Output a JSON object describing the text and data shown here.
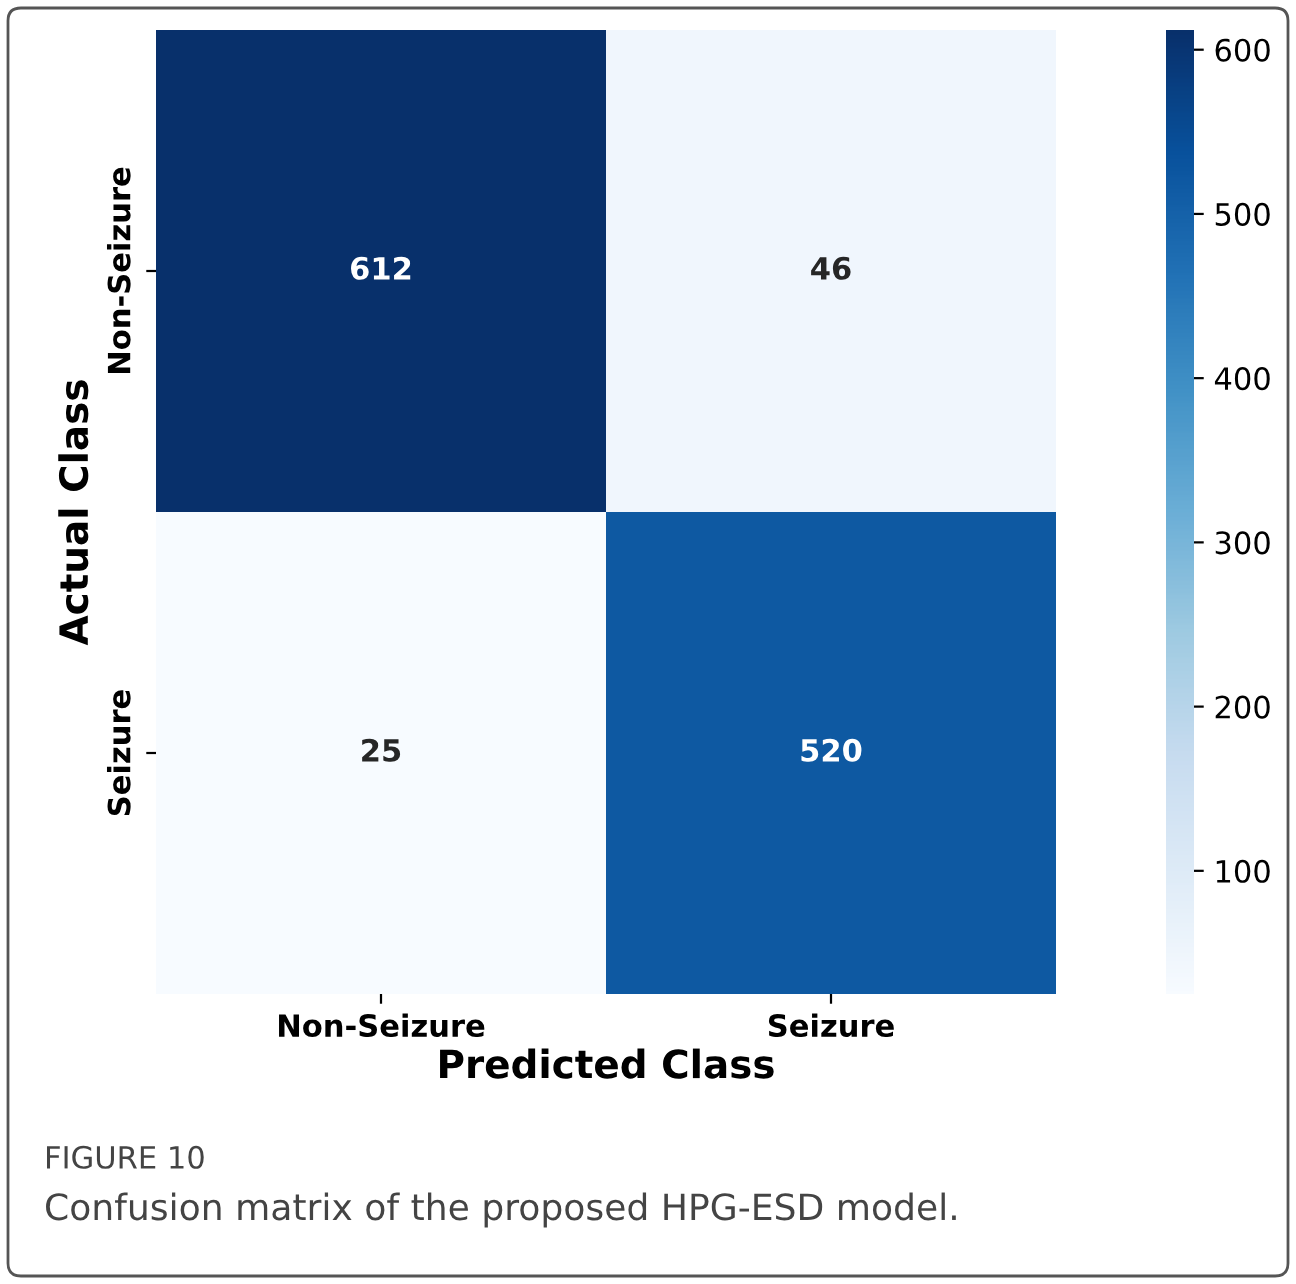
{
  "chart_data": {
    "type": "heatmap",
    "xlabel": "Predicted Class",
    "ylabel": "Actual Class",
    "categories": [
      "Non-Seizure",
      "Seizure"
    ],
    "y_categories": [
      "Non-Seizure",
      "Seizure"
    ],
    "cells": [
      [
        612,
        46
      ],
      [
        25,
        520
      ]
    ],
    "clim": [
      25,
      612
    ],
    "cticks": [
      100,
      200,
      300,
      400,
      500,
      600
    ],
    "data_labels": true,
    "annotations": [
      "FIGURE 10",
      "Confusion matrix of the proposed HPG-ESD model."
    ]
  }
}
